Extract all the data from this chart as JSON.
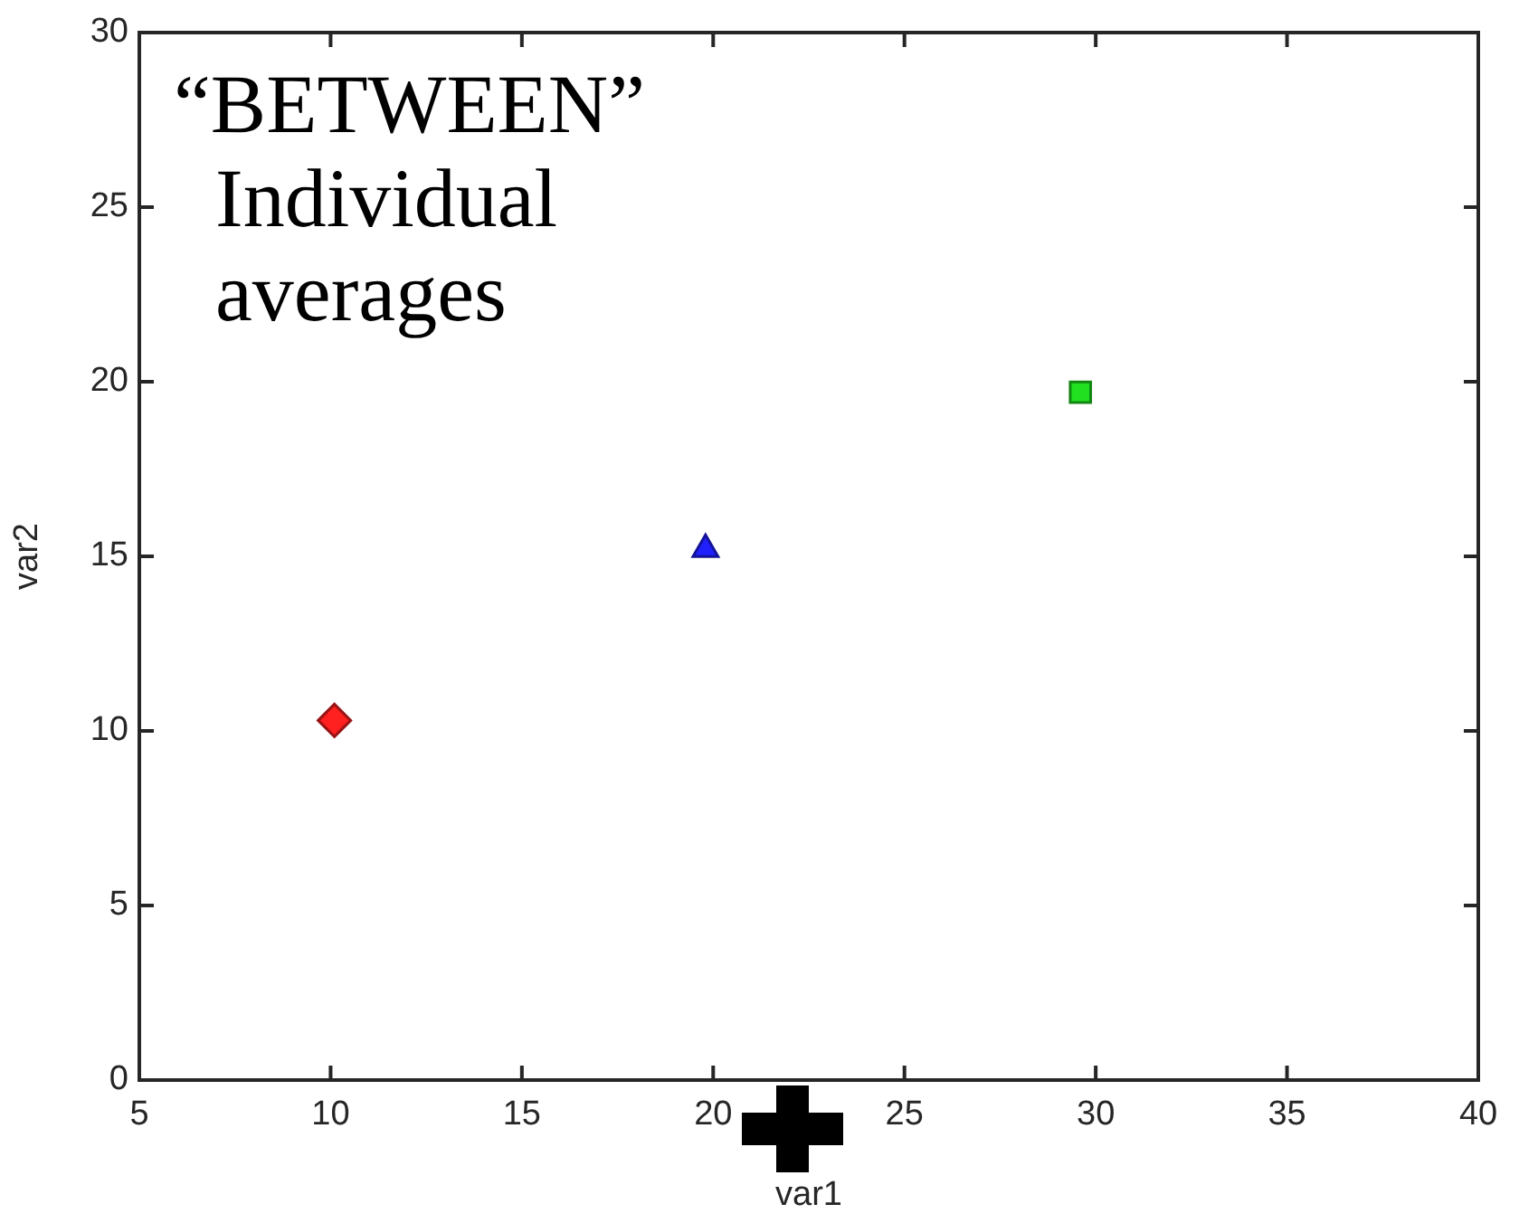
{
  "chart_data": {
    "type": "scatter",
    "xlabel": "var1",
    "ylabel": "var2",
    "xlim": [
      5,
      40
    ],
    "xticks": [
      5,
      10,
      15,
      20,
      25,
      30,
      35,
      40
    ],
    "ylim": [
      0,
      30
    ],
    "yticks": [
      0,
      5,
      10,
      15,
      20,
      25,
      30
    ],
    "grid": false,
    "legend": false,
    "annotations": [
      "“BETWEEN”\n  Individual\n  averages"
    ],
    "series": [
      {
        "x": [
          10.1
        ],
        "values": [
          10.3
        ],
        "color": "#ff2020",
        "marker": "diamond"
      },
      {
        "x": [
          19.8
        ],
        "values": [
          15.2
        ],
        "color": "#2020ff",
        "marker": "triangle"
      },
      {
        "x": [
          29.6
        ],
        "values": [
          19.7
        ],
        "color": "#20e020",
        "marker": "square"
      }
    ]
  }
}
